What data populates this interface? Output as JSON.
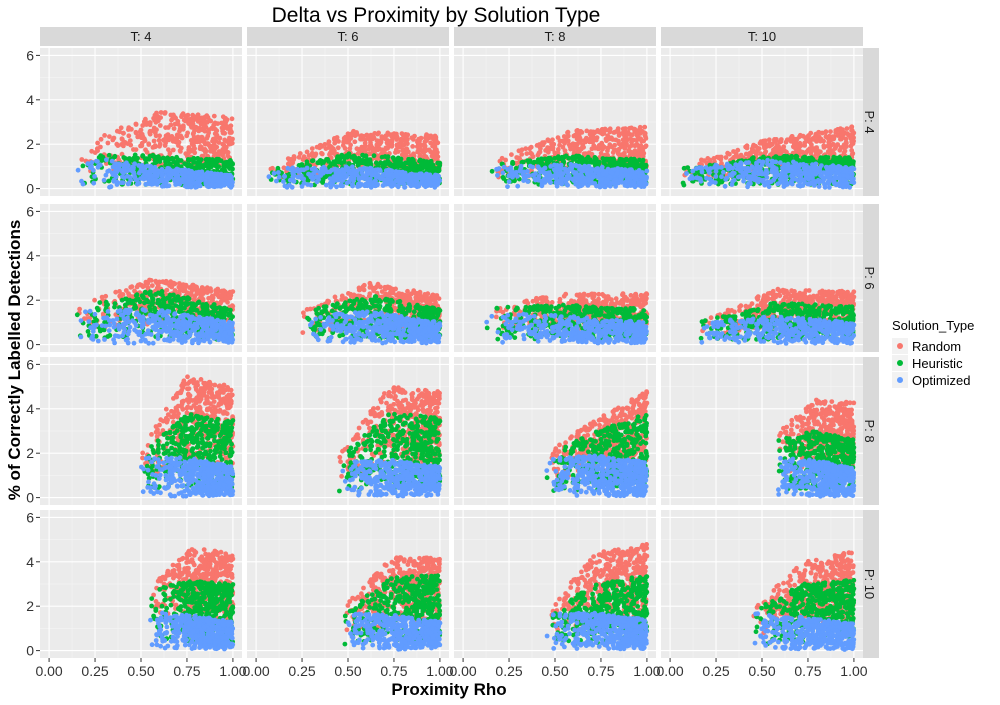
{
  "chart_data": {
    "type": "scatter",
    "title": "Delta vs Proximity by Solution Type",
    "xlabel": "Proximity Rho",
    "ylabel": "% of Correctly Labelled Detections",
    "xlim": [
      0,
      1
    ],
    "ylim": [
      0,
      6
    ],
    "x_ticks": [
      "0.00",
      "0.25",
      "0.50",
      "0.75",
      "1.00"
    ],
    "y_ticks": [
      "0",
      "2",
      "4",
      "6"
    ],
    "grid": true,
    "legend_position": "right",
    "legend_title": "Solution_Type",
    "facet_columns": [
      "T: 4",
      "T: 6",
      "T: 8",
      "T: 10"
    ],
    "facet_rows": [
      "P: 4",
      "P: 6",
      "P: 8",
      "P: 10"
    ],
    "series": [
      {
        "name": "Random",
        "color": "#F8766D"
      },
      {
        "name": "Heuristic",
        "color": "#00BA38"
      },
      {
        "name": "Optimized",
        "color": "#619CFF"
      }
    ],
    "panels": [
      {
        "col": 0,
        "row": 0,
        "x_start": 0.15,
        "random_top": [
          1.8,
          3.5,
          3.2
        ],
        "heuristic_top": [
          1.6,
          1.5,
          1.3
        ],
        "optimized_top": [
          1.5,
          1.0,
          0.6
        ]
      },
      {
        "col": 1,
        "row": 0,
        "x_start": 0.05,
        "random_top": [
          1.0,
          2.6,
          2.4
        ],
        "heuristic_top": [
          0.9,
          1.6,
          1.2
        ],
        "optimized_top": [
          0.9,
          1.0,
          0.6
        ]
      },
      {
        "col": 2,
        "row": 0,
        "x_start": 0.15,
        "random_top": [
          1.2,
          2.6,
          2.8
        ],
        "heuristic_top": [
          1.1,
          1.5,
          1.3
        ],
        "optimized_top": [
          1.0,
          1.1,
          0.8
        ]
      },
      {
        "col": 3,
        "row": 0,
        "x_start": 0.05,
        "random_top": [
          1.0,
          2.2,
          2.8
        ],
        "heuristic_top": [
          0.9,
          1.5,
          1.4
        ],
        "optimized_top": [
          0.9,
          1.3,
          1.0
        ]
      },
      {
        "col": 0,
        "row": 1,
        "x_start": 0.15,
        "random_top": [
          1.8,
          3.0,
          2.4
        ],
        "heuristic_top": [
          1.7,
          2.5,
          1.6
        ],
        "optimized_top": [
          1.5,
          1.6,
          1.0
        ]
      },
      {
        "col": 1,
        "row": 1,
        "x_start": 0.25,
        "random_top": [
          1.6,
          2.8,
          2.2
        ],
        "heuristic_top": [
          1.5,
          2.2,
          1.6
        ],
        "optimized_top": [
          1.3,
          1.5,
          1.0
        ]
      },
      {
        "col": 2,
        "row": 1,
        "x_start": 0.12,
        "random_top": [
          1.8,
          2.3,
          2.3
        ],
        "heuristic_top": [
          1.7,
          1.8,
          1.6
        ],
        "optimized_top": [
          1.5,
          1.3,
          1.0
        ]
      },
      {
        "col": 3,
        "row": 1,
        "x_start": 0.15,
        "random_top": [
          1.0,
          2.5,
          2.4
        ],
        "heuristic_top": [
          1.0,
          1.9,
          1.7
        ],
        "optimized_top": [
          1.0,
          1.3,
          1.0
        ]
      },
      {
        "col": 0,
        "row": 2,
        "x_start": 0.5,
        "random_top": [
          2.2,
          5.5,
          5.0
        ],
        "heuristic_top": [
          2.0,
          3.8,
          3.5
        ],
        "optimized_top": [
          1.8,
          1.8,
          1.4
        ]
      },
      {
        "col": 1,
        "row": 2,
        "x_start": 0.45,
        "random_top": [
          2.0,
          5.0,
          4.8
        ],
        "heuristic_top": [
          1.8,
          3.8,
          3.6
        ],
        "optimized_top": [
          1.6,
          1.7,
          1.4
        ]
      },
      {
        "col": 2,
        "row": 2,
        "x_start": 0.45,
        "random_top": [
          2.2,
          3.5,
          4.8
        ],
        "heuristic_top": [
          2.0,
          3.0,
          3.8
        ],
        "optimized_top": [
          1.8,
          1.9,
          1.6
        ]
      },
      {
        "col": 3,
        "row": 2,
        "x_start": 0.58,
        "random_top": [
          3.0,
          4.4,
          4.3
        ],
        "heuristic_top": [
          2.6,
          3.0,
          2.6
        ],
        "optimized_top": [
          1.8,
          1.7,
          1.3
        ]
      },
      {
        "col": 0,
        "row": 3,
        "x_start": 0.55,
        "random_top": [
          3.0,
          4.6,
          4.5
        ],
        "heuristic_top": [
          2.8,
          3.2,
          3.0
        ],
        "optimized_top": [
          1.8,
          1.6,
          1.3
        ]
      },
      {
        "col": 1,
        "row": 3,
        "x_start": 0.48,
        "random_top": [
          2.0,
          4.2,
          4.2
        ],
        "heuristic_top": [
          1.8,
          3.3,
          3.4
        ],
        "optimized_top": [
          1.7,
          1.6,
          1.3
        ]
      },
      {
        "col": 2,
        "row": 3,
        "x_start": 0.45,
        "random_top": [
          1.8,
          4.4,
          4.8
        ],
        "heuristic_top": [
          1.8,
          3.0,
          3.4
        ],
        "optimized_top": [
          1.7,
          1.7,
          1.4
        ]
      },
      {
        "col": 3,
        "row": 3,
        "x_start": 0.45,
        "random_top": [
          2.0,
          4.0,
          4.5
        ],
        "heuristic_top": [
          1.8,
          3.0,
          3.2
        ],
        "optimized_top": [
          1.7,
          1.5,
          1.2
        ]
      }
    ]
  }
}
